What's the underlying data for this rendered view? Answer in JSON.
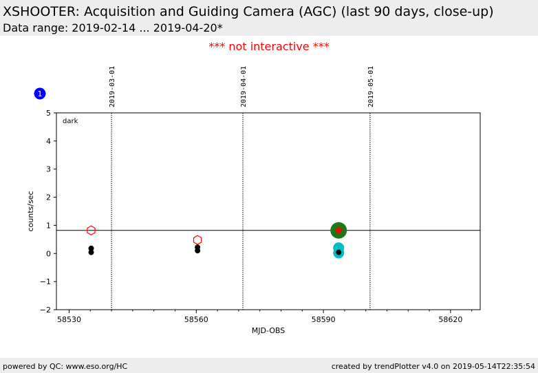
{
  "header": {
    "title": "XSHOOTER: Acquisition and Guiding Camera (AGC) (last 90 days, close-up)",
    "subtitle": "Data range: 2019-02-14 ... 2019-04-20*"
  },
  "notice": "*** not interactive ***",
  "badge": "1",
  "panel_label": "dark",
  "footer": {
    "left": "powered by QC: www.eso.org/HC",
    "right": "created by trendPlotter v4.0 on 2019-05-14T22:35:54"
  },
  "colors": {
    "data_points": "#000000",
    "open_hexagon": "#ff0000",
    "latest_point_green": "#1a7a1a",
    "latest_marker_red": "#ff0000",
    "cyan_points": "#00bfbf",
    "badge": "#0000ff",
    "header_band": "#ededed"
  },
  "chart_data": {
    "type": "scatter",
    "xlabel": "MJD-OBS",
    "ylabel": "counts/sec",
    "xlim": [
      58527,
      58627
    ],
    "ylim": [
      -2,
      5
    ],
    "x_ticks": [
      58530,
      58560,
      58590,
      58620
    ],
    "y_ticks": [
      -2,
      -1,
      0,
      1,
      2,
      3,
      4,
      5
    ],
    "reference_line_y": 0.82,
    "date_markers": [
      {
        "x": 58540,
        "label": "2019-03-01"
      },
      {
        "x": 58571,
        "label": "2019-04-01"
      },
      {
        "x": 58601,
        "label": "2019-05-01"
      }
    ],
    "points": [
      {
        "x": 58535.2,
        "y": 0.18
      },
      {
        "x": 58535.2,
        "y": 0.04
      },
      {
        "x": 58560.3,
        "y": 0.22
      },
      {
        "x": 58560.3,
        "y": 0.1
      },
      {
        "x": 58593.6,
        "y": 0.04
      }
    ],
    "open_hexagons": [
      {
        "x": 58535.2,
        "y": 0.82
      },
      {
        "x": 58560.3,
        "y": 0.48
      }
    ],
    "latest_point": {
      "x": 58593.6,
      "y": 0.82
    },
    "cyan_points": [
      {
        "x": 58593.6,
        "y": 0.2
      },
      {
        "x": 58593.6,
        "y": 0.02
      }
    ]
  }
}
